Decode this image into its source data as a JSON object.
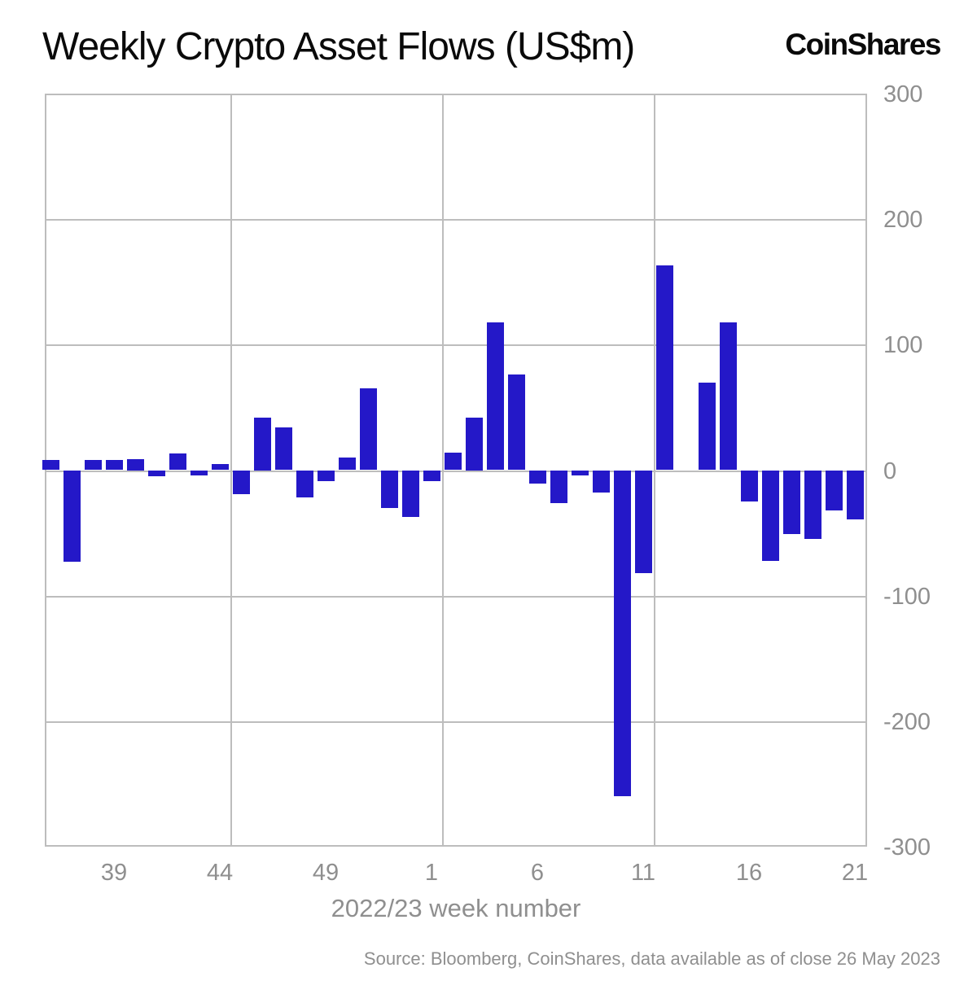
{
  "header": {
    "title": "Weekly Crypto Asset Flows (US$m)",
    "logo": "CoinShares"
  },
  "chart_data": {
    "type": "bar",
    "title": "Weekly Crypto Asset Flows (US$m)",
    "xlabel": "2022/23 week number",
    "ylabel": "",
    "ylim": [
      -300,
      300
    ],
    "grid": true,
    "legend_position": "none",
    "y_ticks": [
      "300",
      "200",
      "100",
      "0",
      "-100",
      "-200",
      "-300"
    ],
    "x_tick_labels": [
      "39",
      "44",
      "49",
      "1",
      "6",
      "11",
      "16",
      "21"
    ],
    "categories": [
      "36",
      "37",
      "38",
      "39",
      "40",
      "41",
      "42",
      "43",
      "44",
      "45",
      "46",
      "47",
      "48",
      "49",
      "50",
      "51",
      "52",
      "53",
      "1",
      "2",
      "3",
      "4",
      "5",
      "6",
      "7",
      "8",
      "9",
      "10",
      "11",
      "12",
      "13",
      "14",
      "15",
      "16",
      "17",
      "18",
      "19",
      "20",
      "21"
    ],
    "values": [
      8,
      -73,
      8,
      8,
      9,
      -5,
      13,
      -4,
      5,
      -19,
      42,
      34,
      -22,
      -9,
      10,
      65,
      -30,
      -37,
      -9,
      14,
      42,
      118,
      76,
      -11,
      -26,
      -4,
      -18,
      -260,
      -82,
      163,
      0,
      70,
      118,
      -25,
      -72,
      -51,
      -55,
      -32,
      -39
    ]
  },
  "colors": {
    "bar": "#2418C8",
    "gridline": "#bdbdbd",
    "axis_text": "#8f8f8f",
    "title_text": "#0a0a0a"
  },
  "footer": {
    "source": "Source: Bloomberg, CoinShares, data available as of close 26 May 2023"
  }
}
